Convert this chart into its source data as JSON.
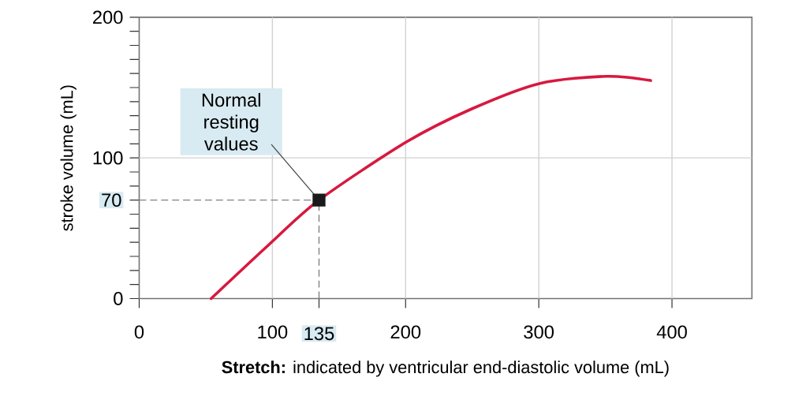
{
  "chart_data": {
    "type": "line",
    "xlabel": "**Stretch:** indicated by ventricular end-diastolic volume (mL)",
    "ylabel": "stroke volume (mL)",
    "xlim": [
      0,
      460
    ],
    "ylim": [
      0,
      200
    ],
    "xticks": [
      0,
      100,
      135,
      200,
      300,
      400
    ],
    "yticks": [
      0,
      {
        "value": 10,
        "label": null
      },
      {
        "value": 20,
        "label": null
      },
      {
        "value": 30,
        "label": null
      },
      {
        "value": 40,
        "label": null
      },
      {
        "value": 50,
        "label": null
      },
      {
        "value": 60,
        "label": null
      },
      70,
      {
        "value": 80,
        "label": null
      },
      {
        "value": 90,
        "label": null
      },
      100,
      {
        "value": 110,
        "label": null
      },
      {
        "value": 120,
        "label": null
      },
      {
        "value": 130,
        "label": null
      },
      {
        "value": 140,
        "label": null
      },
      {
        "value": 150,
        "label": null
      },
      {
        "value": 160,
        "label": null
      },
      {
        "value": 170,
        "label": null
      },
      {
        "value": 180,
        "label": null
      },
      {
        "value": 190,
        "label": null
      },
      200
    ],
    "grid": true,
    "series": [
      {
        "color": "#d7193f",
        "x": [
          54,
          97,
          135,
          200,
          250,
          301,
          351,
          384
        ],
        "values": [
          0,
          38,
          70,
          111,
          135,
          153,
          158,
          155
        ]
      },
      {
        "type": "scatter",
        "color": "#1a1a1a",
        "marker": "square",
        "x": [
          135
        ],
        "values": [
          70
        ]
      }
    ],
    "ref_lines": [
      {
        "axis": "x",
        "value": 135,
        "color": "#808080",
        "line_style": "dashed"
      },
      {
        "axis": "y",
        "value": 70,
        "color": "#808080",
        "line_style": "dashed"
      }
    ],
    "annotations": [
      {
        "text": "Normal resting values",
        "x": 135,
        "y": 70
      }
    ]
  }
}
